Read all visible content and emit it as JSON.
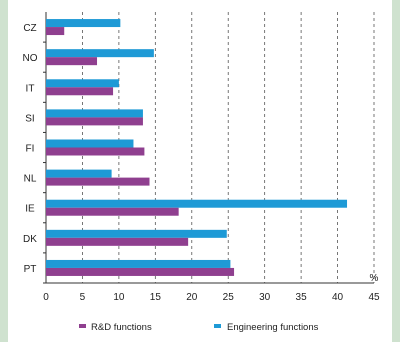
{
  "chart_data": {
    "type": "bar",
    "orientation": "horizontal",
    "categories": [
      "CZ",
      "NO",
      "IT",
      "SI",
      "FI",
      "NL",
      "IE",
      "DK",
      "PT"
    ],
    "series": [
      {
        "name": "R&D functions",
        "color": "#8f3f8f",
        "values": [
          2.5,
          7,
          9.2,
          13.3,
          13.5,
          14.2,
          18.2,
          19.5,
          25.8
        ]
      },
      {
        "name": "Engineering functions",
        "color": "#1e9ad6",
        "values": [
          10.2,
          14.8,
          10,
          13.3,
          12,
          9,
          41.3,
          24.8,
          25.3
        ]
      }
    ],
    "x_ticks": [
      "0",
      "5",
      "10",
      "15",
      "20",
      "25",
      "30",
      "35",
      "40",
      "45"
    ],
    "xlim": [
      0,
      45
    ],
    "xlabel": "",
    "unit": "%",
    "grid": "vertical dashed",
    "legend": "bottom"
  },
  "legend": {
    "rd": "R&D functions",
    "eng": "Engineering functions"
  },
  "axis": {
    "unit": "%"
  }
}
